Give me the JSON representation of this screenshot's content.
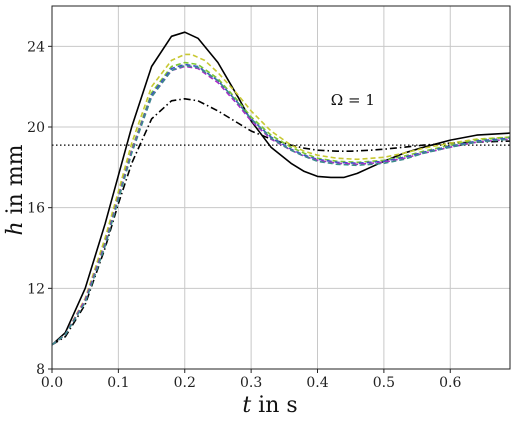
{
  "chart_data": {
    "type": "line",
    "xlabel": {
      "var": "t",
      "rest": " in s"
    },
    "ylabel": {
      "var": "h",
      "rest": " in mm"
    },
    "xlim": [
      0,
      0.69
    ],
    "ylim": [
      8,
      26
    ],
    "xticks": [
      0.0,
      0.1,
      0.2,
      0.3,
      0.4,
      0.5,
      0.6
    ],
    "xtick_labels": [
      "0.0",
      "0.1",
      "0.2",
      "0.3",
      "0.4",
      "0.5",
      "0.6"
    ],
    "yticks": [
      8,
      12,
      16,
      20,
      24
    ],
    "ytick_labels": [
      "8",
      "12",
      "16",
      "20",
      "24"
    ],
    "grid": true,
    "annotation": {
      "text": "Ω = 1",
      "x": 0.42,
      "y": 21.1
    },
    "reference_line": {
      "y": 19.1,
      "style": "dotted",
      "color": "#000000"
    },
    "series": [
      {
        "color": "#000000",
        "dash": "solid",
        "x": [
          0,
          0.02,
          0.05,
          0.08,
          0.1,
          0.12,
          0.15,
          0.18,
          0.2,
          0.22,
          0.25,
          0.28,
          0.3,
          0.33,
          0.36,
          0.38,
          0.4,
          0.42,
          0.44,
          0.46,
          0.48,
          0.5,
          0.53,
          0.56,
          0.6,
          0.64,
          0.69
        ],
        "y": [
          9.2,
          9.8,
          12.0,
          15.2,
          17.6,
          20.0,
          23.0,
          24.5,
          24.7,
          24.4,
          23.2,
          21.5,
          20.3,
          19.0,
          18.2,
          17.8,
          17.55,
          17.5,
          17.5,
          17.7,
          18.0,
          18.3,
          18.7,
          19.0,
          19.35,
          19.6,
          19.7
        ]
      },
      {
        "color": "#000000",
        "dash": "dashdot",
        "x": [
          0,
          0.02,
          0.05,
          0.08,
          0.1,
          0.12,
          0.15,
          0.18,
          0.2,
          0.22,
          0.25,
          0.28,
          0.3,
          0.33,
          0.36,
          0.38,
          0.4,
          0.43,
          0.45,
          0.48,
          0.5,
          0.53,
          0.56,
          0.6,
          0.64,
          0.69
        ],
        "y": [
          9.2,
          9.6,
          11.2,
          14.0,
          16.2,
          18.2,
          20.4,
          21.3,
          21.4,
          21.3,
          20.8,
          20.2,
          19.8,
          19.4,
          19.1,
          18.95,
          18.85,
          18.8,
          18.8,
          18.85,
          18.9,
          19.0,
          19.1,
          19.2,
          19.25,
          19.3
        ]
      },
      {
        "color": "#c8c832",
        "dash": "dashed",
        "x": [
          0,
          0.02,
          0.05,
          0.08,
          0.1,
          0.12,
          0.15,
          0.18,
          0.2,
          0.21,
          0.23,
          0.25,
          0.28,
          0.3,
          0.33,
          0.36,
          0.38,
          0.4,
          0.43,
          0.46,
          0.5,
          0.53,
          0.56,
          0.6,
          0.64,
          0.69
        ],
        "y": [
          9.2,
          9.7,
          11.5,
          14.5,
          16.8,
          19.2,
          22.0,
          23.3,
          23.6,
          23.6,
          23.3,
          22.7,
          21.6,
          20.8,
          19.8,
          19.1,
          18.8,
          18.6,
          18.45,
          18.4,
          18.5,
          18.7,
          18.95,
          19.2,
          19.4,
          19.5
        ]
      },
      {
        "color": "#7cc832",
        "dash": "dashed",
        "x": [
          0,
          0.02,
          0.05,
          0.08,
          0.1,
          0.12,
          0.15,
          0.18,
          0.2,
          0.22,
          0.25,
          0.28,
          0.3,
          0.33,
          0.36,
          0.38,
          0.4,
          0.43,
          0.46,
          0.5,
          0.53,
          0.56,
          0.6,
          0.64,
          0.69
        ],
        "y": [
          9.2,
          9.7,
          11.4,
          14.3,
          16.6,
          18.9,
          21.7,
          23.0,
          23.2,
          23.1,
          22.4,
          21.3,
          20.5,
          19.6,
          19.0,
          18.7,
          18.45,
          18.3,
          18.25,
          18.35,
          18.55,
          18.8,
          19.1,
          19.35,
          19.5
        ]
      },
      {
        "color": "#3c50c8",
        "dash": "dashed",
        "x": [
          0,
          0.02,
          0.05,
          0.08,
          0.1,
          0.12,
          0.15,
          0.18,
          0.2,
          0.22,
          0.25,
          0.28,
          0.3,
          0.33,
          0.36,
          0.38,
          0.4,
          0.43,
          0.46,
          0.5,
          0.53,
          0.56,
          0.6,
          0.64,
          0.69
        ],
        "y": [
          9.2,
          9.7,
          11.4,
          14.2,
          16.5,
          18.8,
          21.6,
          22.9,
          23.1,
          23.0,
          22.3,
          21.2,
          20.4,
          19.5,
          18.9,
          18.6,
          18.4,
          18.25,
          18.2,
          18.3,
          18.5,
          18.75,
          19.05,
          19.3,
          19.45
        ]
      },
      {
        "color": "#aa28c8",
        "dash": "dashed",
        "x": [
          0,
          0.02,
          0.05,
          0.08,
          0.1,
          0.12,
          0.15,
          0.18,
          0.2,
          0.22,
          0.25,
          0.28,
          0.3,
          0.33,
          0.36,
          0.38,
          0.4,
          0.43,
          0.46,
          0.5,
          0.53,
          0.56,
          0.6,
          0.64,
          0.69
        ],
        "y": [
          9.2,
          9.7,
          11.4,
          14.2,
          16.5,
          18.8,
          21.5,
          22.8,
          23.0,
          22.9,
          22.2,
          21.1,
          20.3,
          19.4,
          18.85,
          18.55,
          18.35,
          18.2,
          18.15,
          18.25,
          18.45,
          18.7,
          19.0,
          19.25,
          19.4
        ]
      },
      {
        "color": "#3c8c8c",
        "dash": "dashed",
        "x": [
          0,
          0.02,
          0.05,
          0.08,
          0.1,
          0.12,
          0.15,
          0.18,
          0.2,
          0.22,
          0.25,
          0.28,
          0.3,
          0.33,
          0.36,
          0.38,
          0.4,
          0.43,
          0.46,
          0.5,
          0.53,
          0.56,
          0.6,
          0.64,
          0.69
        ],
        "y": [
          9.2,
          9.7,
          11.3,
          14.1,
          16.4,
          18.7,
          21.5,
          22.8,
          23.05,
          22.95,
          22.3,
          21.2,
          20.4,
          19.45,
          18.85,
          18.55,
          18.3,
          18.15,
          18.1,
          18.2,
          18.4,
          18.7,
          19.0,
          19.25,
          19.4
        ]
      }
    ]
  }
}
